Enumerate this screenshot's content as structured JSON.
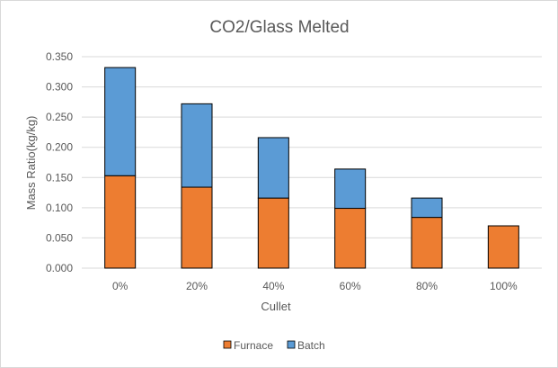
{
  "chart_data": {
    "type": "bar",
    "stacked": true,
    "title": "CO2/Glass Melted",
    "xlabel": "Cullet",
    "ylabel": "Mass Ratio(kg/kg)",
    "categories": [
      "0%",
      "20%",
      "40%",
      "60%",
      "80%",
      "100%"
    ],
    "series": [
      {
        "name": "Furnace",
        "color": "#ed7d31",
        "values": [
          0.153,
          0.134,
          0.116,
          0.099,
          0.084,
          0.07
        ]
      },
      {
        "name": "Batch",
        "color": "#5b9bd5",
        "values": [
          0.179,
          0.138,
          0.1,
          0.065,
          0.032,
          0.0
        ]
      }
    ],
    "ylim": [
      0,
      0.35
    ],
    "yticks": [
      "0.000",
      "0.050",
      "0.100",
      "0.150",
      "0.200",
      "0.250",
      "0.300",
      "0.350"
    ],
    "grid": true,
    "legend_position": "bottom"
  }
}
